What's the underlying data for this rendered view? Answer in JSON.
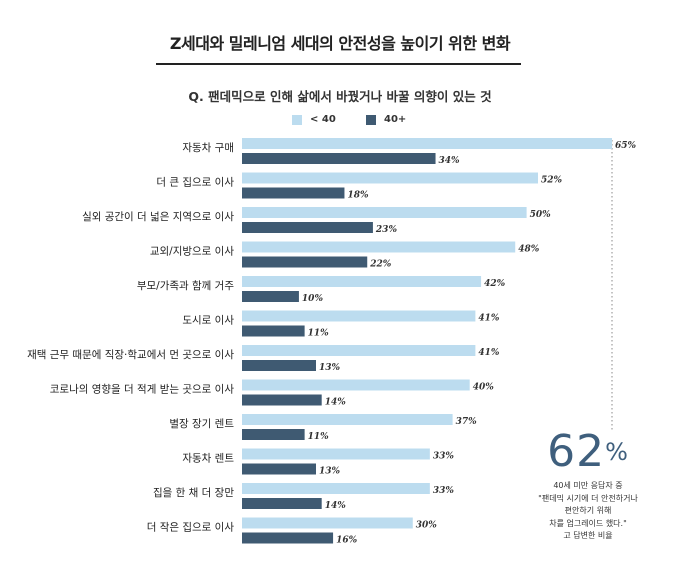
{
  "title": "Z세대와 밀레니엄 세대의 안전성을 높이기 위한 변화",
  "question": "Q. 팬데믹으로 인해 삶에서 바꿨거나 바꿀 의향이 있는 것",
  "legend": [
    {
      "label": "< 40",
      "color": "#bcdcef"
    },
    {
      "label": "40+",
      "color": "#3f5a72"
    }
  ],
  "callout": {
    "value": "62",
    "unit": "%",
    "text": "40세 미만 응답자 중\n\"팬데믹 시기에 더 안전하거나\n편안하기 위해\n차를 업그레이드 했다.\"\n고 답변한 비율"
  },
  "chart_data": {
    "type": "bar",
    "orientation": "horizontal",
    "categories": [
      "자동차 구매",
      "더 큰 집으로 이사",
      "실외 공간이 더 넓은 지역으로 이사",
      "교외/지방으로 이사",
      "부모/가족과 함께 거주",
      "도시로 이사",
      "재택 근무 때문에 직장·학교에서 먼 곳으로 이사",
      "코로나의 영향을 더 적게 받는 곳으로 이사",
      "별장 장기 렌트",
      "자동차 렌트",
      "집을 한 채 더 장만",
      "더 작은 집으로 이사"
    ],
    "series": [
      {
        "name": "< 40",
        "color": "#bcdcef",
        "values": [
          65,
          52,
          50,
          48,
          42,
          41,
          41,
          40,
          37,
          33,
          33,
          30
        ]
      },
      {
        "name": "40+",
        "color": "#3f5a72",
        "values": [
          34,
          18,
          23,
          22,
          10,
          11,
          13,
          14,
          11,
          13,
          14,
          16
        ]
      }
    ],
    "value_suffix": "%",
    "xlim": [
      0,
      70
    ]
  }
}
